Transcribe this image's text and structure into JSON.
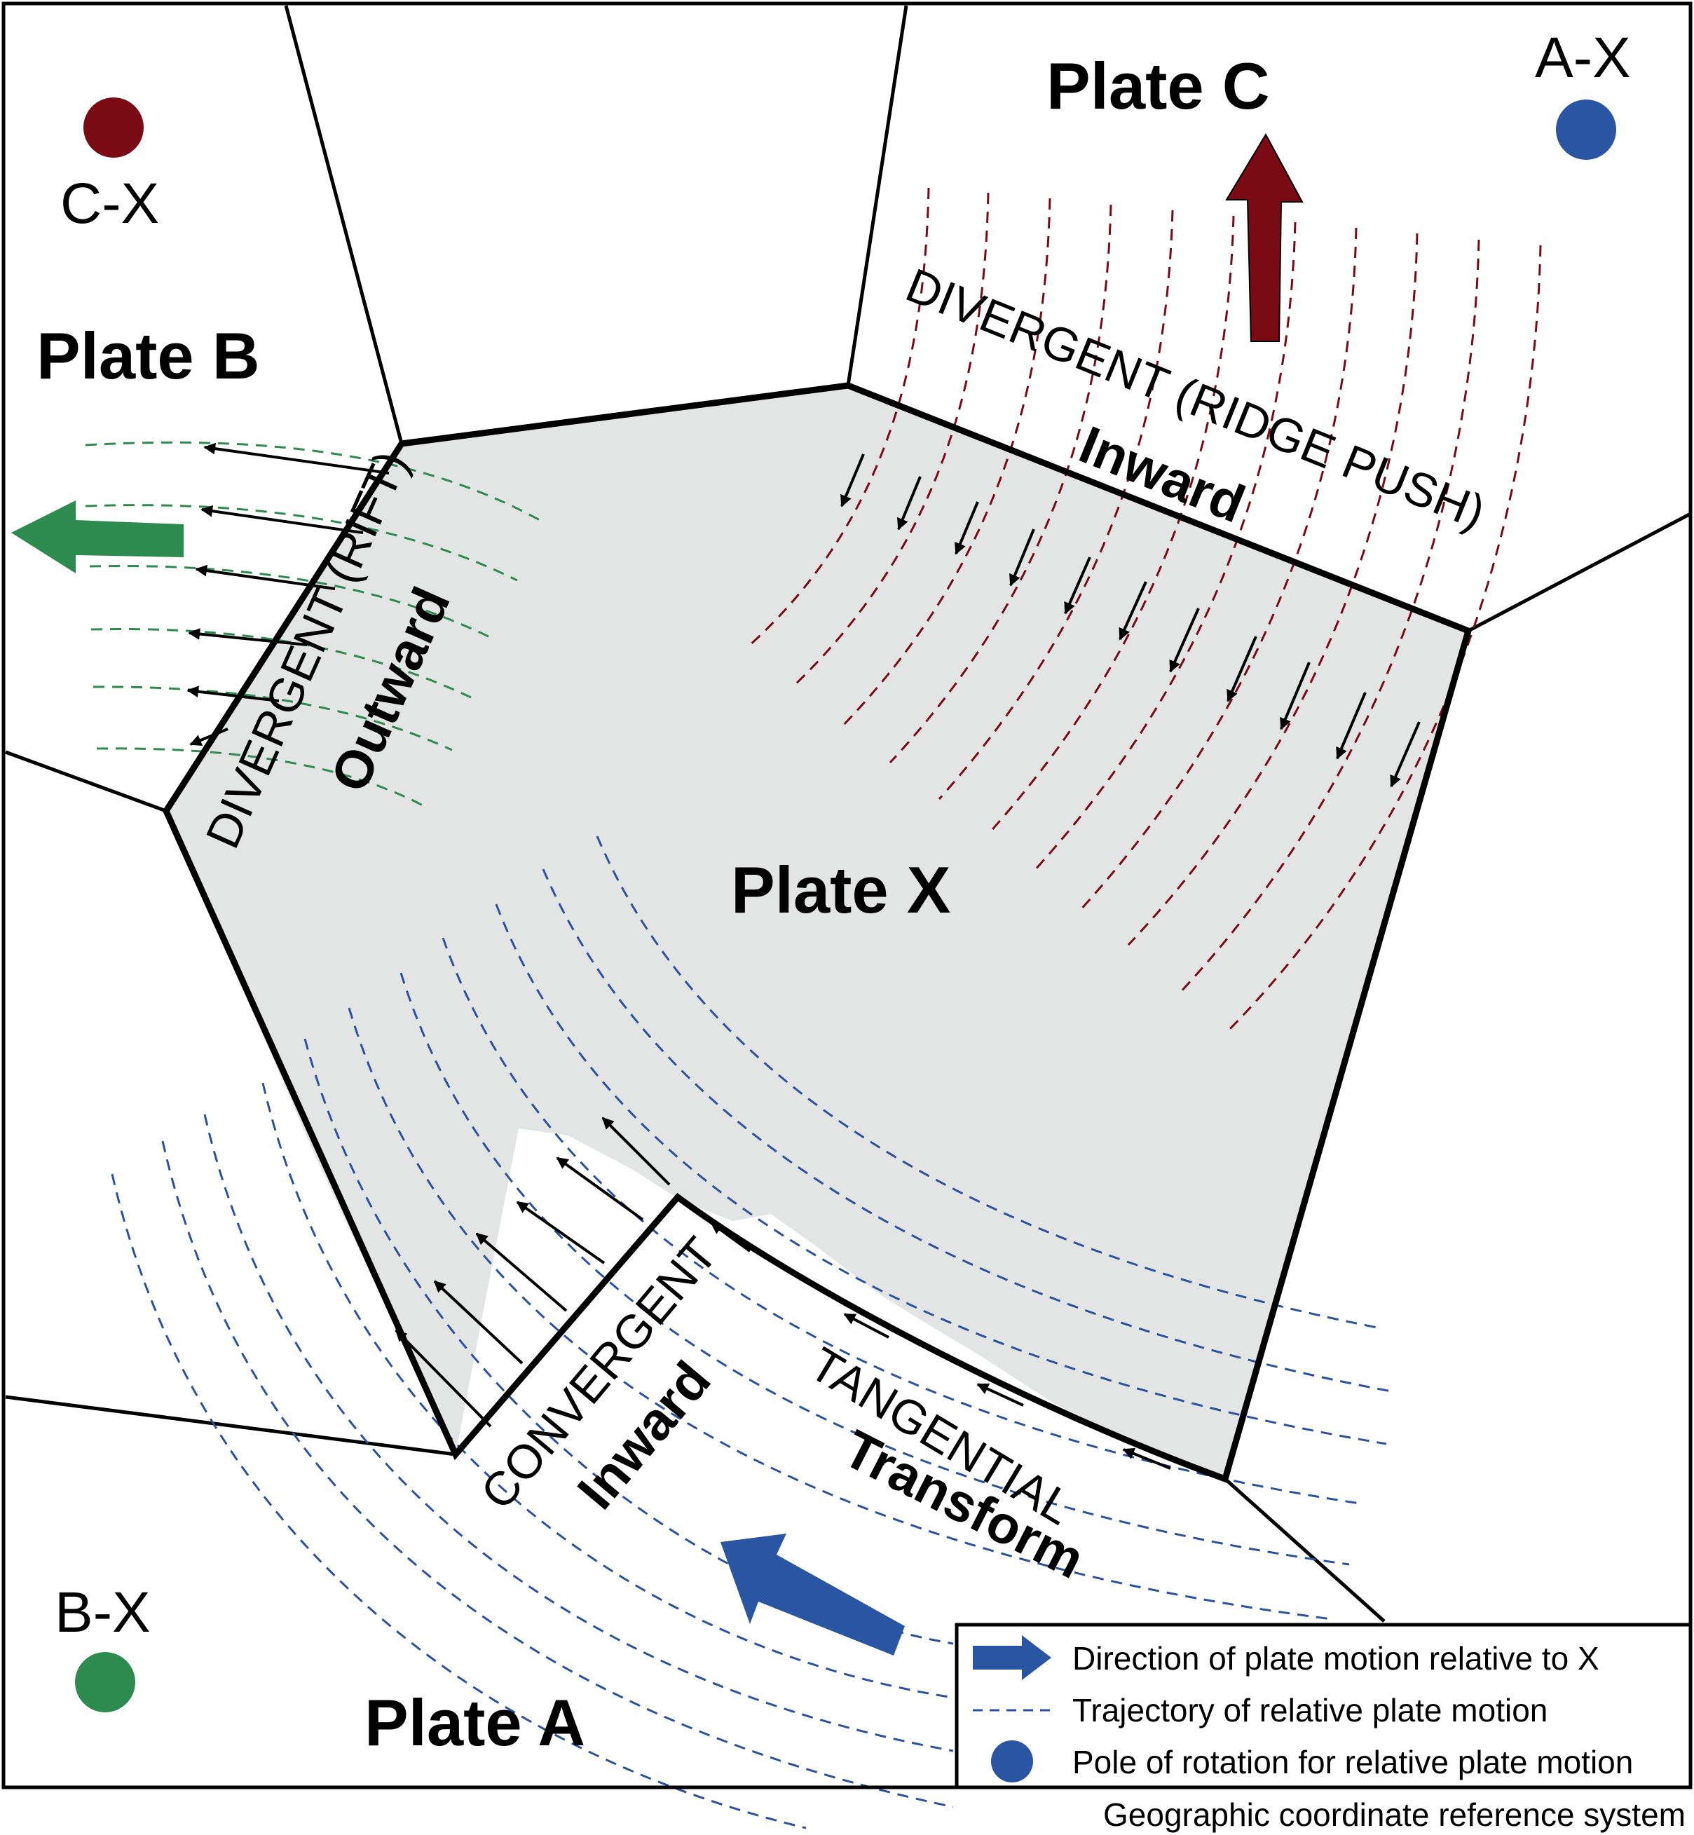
{
  "plates": {
    "a": "Plate A",
    "b": "Plate B",
    "c": "Plate C",
    "x": "Plate X"
  },
  "poles": {
    "ax": {
      "label": "A-X",
      "color": "#2a55a3"
    },
    "bx": {
      "label": "B-X",
      "color": "#2e8b50"
    },
    "cx": {
      "label": "C-X",
      "color": "#7a0a14"
    }
  },
  "boundaries": {
    "ridge": {
      "type": "DIVERGENT (RIDGE PUSH)",
      "force": "Inward"
    },
    "rift": {
      "type": "DIVERGENT (RIFT)",
      "force": "Outward"
    },
    "convergent": {
      "type": "CONVERGENT",
      "force": "Inward"
    },
    "transform": {
      "type": "TANGENTIAL",
      "force": "Transform"
    }
  },
  "legend": {
    "motion": "Direction of plate motion relative to X",
    "trajectory": "Trajectory of relative plate motion",
    "pole": "Pole of rotation for relative plate motion"
  },
  "crs_label": "Geographic coordinate reference system",
  "colors": {
    "plate_x_fill": "#e3e4e4",
    "ridge": "#7a0a14",
    "rift": "#2e8b50",
    "subduction": "#2a52a0",
    "legend_arrow": "#2a55a3"
  }
}
